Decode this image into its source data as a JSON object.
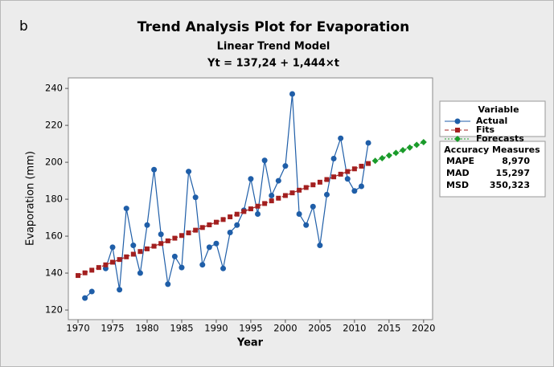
{
  "chart_data": {
    "type": "line",
    "panel_label": "b",
    "title": "Trend Analysis Plot for Evaporation",
    "subtitle": "Linear Trend Model",
    "equation": "Yt = 137,24 + 1,444×t",
    "x_label": "Year",
    "y_label": "Evaporation (mm)",
    "x": [
      1970,
      1971,
      1972,
      1973,
      1974,
      1975,
      1976,
      1977,
      1978,
      1979,
      1980,
      1981,
      1982,
      1983,
      1984,
      1985,
      1986,
      1987,
      1988,
      1989,
      1990,
      1991,
      1992,
      1993,
      1994,
      1995,
      1996,
      1997,
      1998,
      1999,
      2000,
      2001,
      2002,
      2003,
      2004,
      2005,
      2006,
      2007,
      2008,
      2009,
      2010,
      2011,
      2012,
      2013,
      2014,
      2015,
      2016,
      2017,
      2018,
      2019,
      2020
    ],
    "series": [
      {
        "name": "Actual",
        "color": "#1f5ea8",
        "marker": "circle",
        "dash": "solid",
        "values": [
          null,
          126.5,
          130,
          null,
          142.5,
          154,
          131,
          175,
          155,
          140,
          166,
          196,
          161,
          134,
          149,
          143,
          195,
          181,
          144.5,
          154,
          156,
          142.5,
          162,
          166,
          174,
          191,
          172,
          201,
          182,
          190,
          198,
          237,
          172,
          166,
          176,
          155,
          182.5,
          202,
          213,
          191,
          184.5,
          187,
          210.5,
          null,
          null,
          null,
          null,
          null,
          null,
          null,
          null
        ]
      },
      {
        "name": "Fits",
        "color": "#a31f1f",
        "marker": "square",
        "dash": "dashed",
        "values": [
          138.684,
          140.128,
          141.572,
          143.016,
          144.46,
          145.904,
          147.348,
          148.792,
          150.236,
          151.68,
          153.124,
          154.568,
          156.012,
          157.456,
          158.9,
          160.344,
          161.788,
          163.232,
          164.676,
          166.12,
          167.564,
          169.008,
          170.452,
          171.896,
          173.34,
          174.784,
          176.228,
          177.672,
          179.116,
          180.56,
          182.004,
          183.448,
          184.892,
          186.336,
          187.78,
          189.224,
          190.668,
          192.112,
          193.556,
          195.0,
          196.444,
          197.888,
          199.332,
          null,
          null,
          null,
          null,
          null,
          null,
          null,
          null
        ]
      },
      {
        "name": "Forecasts",
        "color": "#1a9b2a",
        "marker": "diamond",
        "dash": "dotted",
        "values": [
          null,
          null,
          null,
          null,
          null,
          null,
          null,
          null,
          null,
          null,
          null,
          null,
          null,
          null,
          null,
          null,
          null,
          null,
          null,
          null,
          null,
          null,
          null,
          null,
          null,
          null,
          null,
          null,
          null,
          null,
          null,
          null,
          null,
          null,
          null,
          null,
          null,
          null,
          null,
          null,
          null,
          null,
          null,
          200.776,
          202.22,
          203.664,
          205.108,
          206.552,
          207.996,
          209.44,
          210.884
        ]
      }
    ],
    "legend_title": "Variable",
    "accuracy": {
      "title": "Accuracy Measures",
      "rows": [
        [
          "MAPE",
          "8,970"
        ],
        [
          "MAD",
          "15,297"
        ],
        [
          "MSD",
          "350,323"
        ]
      ]
    },
    "xlim": [
      1968.6,
      2021.3
    ],
    "xticks": [
      1970,
      1975,
      1980,
      1985,
      1990,
      1995,
      2000,
      2005,
      2010,
      2015,
      2020
    ],
    "ylim": [
      114.8,
      245.7
    ],
    "yticks": [
      120,
      140,
      160,
      180,
      200,
      220,
      240
    ]
  }
}
